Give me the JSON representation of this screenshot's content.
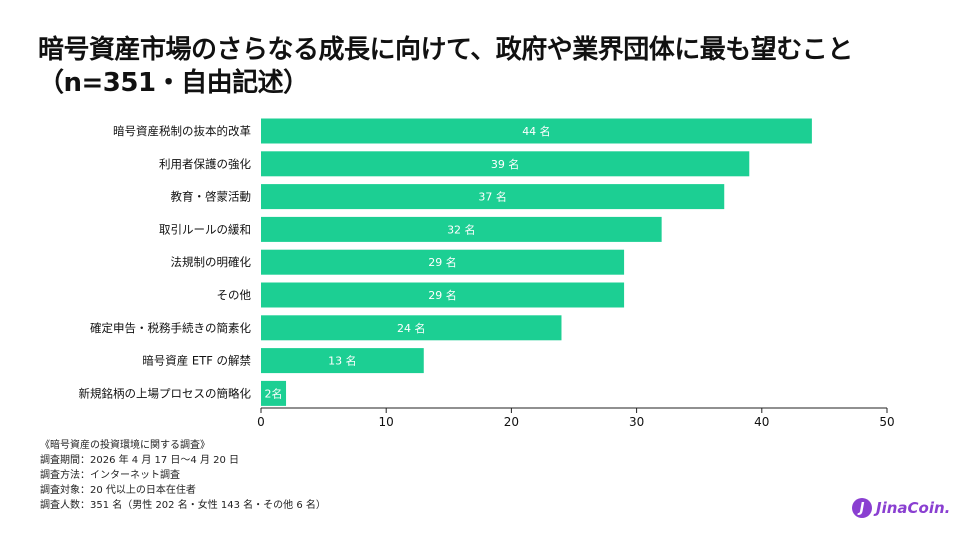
{
  "title_line1": "暗号資産市場のさらなる成長に向けて、政府や業界団体に最も望むこと",
  "title_line2": "（n=351・自由記述）",
  "colors": {
    "bar": "#1ccf93",
    "axis": "#222222",
    "brand": "#8a3fd1"
  },
  "chart_data": {
    "type": "bar",
    "orientation": "horizontal",
    "categories": [
      "暗号資産税制の抜本的改革",
      "利用者保護の強化",
      "教育・啓蒙活動",
      "取引ルールの緩和",
      "法規制の明確化",
      "その他",
      "確定申告・税務手続きの簡素化",
      "暗号資産 ETF の解禁",
      "新規銘柄の上場プロセスの簡略化"
    ],
    "values": [
      44,
      39,
      37,
      32,
      29,
      29,
      24,
      13,
      2
    ],
    "value_labels": [
      "44 名",
      "39 名",
      "37 名",
      "32 名",
      "29 名",
      "29 名",
      "24 名",
      "13 名",
      "2名"
    ],
    "xlim": [
      0,
      50
    ],
    "xticks": [
      "0",
      "10",
      "20",
      "30",
      "40",
      "50"
    ],
    "grid": false
  },
  "notes": [
    "《暗号資産の投資環境に関する調査》",
    "調査期間：2026 年 4 月 17 日～4 月 20 日",
    "調査方法：インターネット調査",
    "調査対象：20 代以上の日本在住者",
    "調査人数：351 名（男性 202 名・女性 143 名・その他 6 名）"
  ],
  "brand": {
    "icon": "J",
    "name": "JinaCoin."
  }
}
